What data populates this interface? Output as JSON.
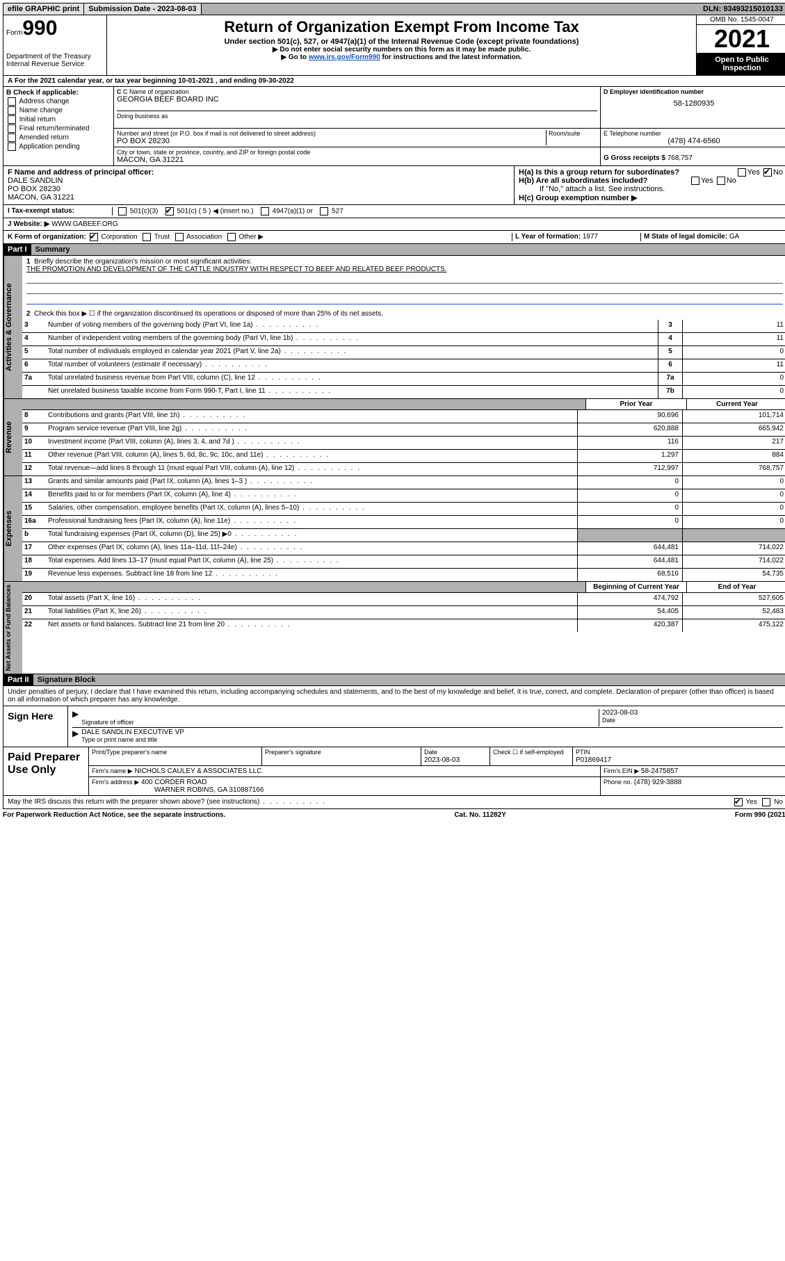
{
  "topbar": {
    "efile": "efile GRAPHIC print",
    "submission_label": "Submission Date - 2023-08-03",
    "dln": "DLN: 93493215010133"
  },
  "header": {
    "form_word": "Form",
    "form_no": "990",
    "title": "Return of Organization Exempt From Income Tax",
    "subtitle": "Under section 501(c), 527, or 4947(a)(1) of the Internal Revenue Code (except private foundations)",
    "instr1": "▶ Do not enter social security numbers on this form as it may be made public.",
    "instr2_pre": "▶ Go to ",
    "instr2_link": "www.irs.gov/Form990",
    "instr2_post": " for instructions and the latest information.",
    "omb": "OMB No. 1545-0047",
    "year": "2021",
    "open_public": "Open to Public Inspection",
    "dept": "Department of the Treasury Internal Revenue Service"
  },
  "section_a": {
    "tax_year": "For the 2021 calendar year, or tax year beginning 10-01-2021   , and ending 09-30-2022",
    "b_label": "B Check if applicable:",
    "b_opts": [
      "Address change",
      "Name change",
      "Initial return",
      "Final return/terminated",
      "Amended return",
      "Application pending"
    ],
    "c_label": "C Name of organization",
    "c_name": "GEORGIA BEEF BOARD INC",
    "dba_label": "Doing business as",
    "addr_label": "Number and street (or P.O. box if mail is not delivered to street address)",
    "room_label": "Room/suite",
    "addr": "PO BOX 28230",
    "city_label": "City or town, state or province, country, and ZIP or foreign postal code",
    "city": "MACON, GA  31221",
    "d_label": "D Employer identification number",
    "d_val": "58-1280935",
    "e_label": "E Telephone number",
    "e_val": "(478) 474-6560",
    "g_label": "G Gross receipts $",
    "g_val": "768,757"
  },
  "section_f": {
    "f_label": "F  Name and address of principal officer:",
    "f_name": "DALE SANDLIN",
    "f_addr1": "PO BOX 28230",
    "f_addr2": "MACON, GA  31221",
    "ha_label": "H(a)  Is this a group return for subordinates?",
    "hb_label": "H(b)  Are all subordinates included?",
    "hb_note": "If \"No,\" attach a list. See instructions.",
    "hc_label": "H(c)  Group exemption number ▶",
    "yes": "Yes",
    "no": "No"
  },
  "tax_status": {
    "i_label": "I    Tax-exempt status:",
    "opt1": "501(c)(3)",
    "opt2": "501(c) ( 5 ) ◀ (insert no.)",
    "opt3": "4947(a)(1) or",
    "opt4": "527"
  },
  "website": {
    "j_label": "J    Website: ▶",
    "j_val": "WWW.GABEEF.ORG"
  },
  "k_org": {
    "k_label": "K Form of organization:",
    "opts": [
      "Corporation",
      "Trust",
      "Association",
      "Other ▶"
    ],
    "l_label": "L Year of formation:",
    "l_val": "1977",
    "m_label": "M State of legal domicile:",
    "m_val": "GA"
  },
  "part1": {
    "hdr": "Part I",
    "title": "Summary",
    "q1": "Briefly describe the organization's mission or most significant activities:",
    "mission": "THE PROMOTION AND DEVELOPMENT OF THE CATTLE INDUSTRY WITH RESPECT TO BEEF AND RELATED BEEF PRODUCTS.",
    "q2": "Check this box ▶ ☐  if the organization discontinued its operations or disposed of more than 25% of its net assets.",
    "gov_lines": [
      {
        "n": "3",
        "d": "Number of voting members of the governing body (Part VI, line 1a)",
        "box": "3",
        "v": "11"
      },
      {
        "n": "4",
        "d": "Number of independent voting members of the governing body (Part VI, line 1b)",
        "box": "4",
        "v": "11"
      },
      {
        "n": "5",
        "d": "Total number of individuals employed in calendar year 2021 (Part V, line 2a)",
        "box": "5",
        "v": "0"
      },
      {
        "n": "6",
        "d": "Total number of volunteers (estimate if necessary)",
        "box": "6",
        "v": "11"
      },
      {
        "n": "7a",
        "d": "Total unrelated business revenue from Part VIII, column (C), line 12",
        "box": "7a",
        "v": "0"
      },
      {
        "n": "",
        "d": "Net unrelated business taxable income from Form 990-T, Part I, line 11",
        "box": "7b",
        "v": "0"
      }
    ],
    "col_prior": "Prior Year",
    "col_current": "Current Year",
    "rev_lines": [
      {
        "n": "8",
        "d": "Contributions and grants (Part VIII, line 1h)",
        "p": "90,696",
        "c": "101,714"
      },
      {
        "n": "9",
        "d": "Program service revenue (Part VIII, line 2g)",
        "p": "620,888",
        "c": "665,942"
      },
      {
        "n": "10",
        "d": "Investment income (Part VIII, column (A), lines 3, 4, and 7d )",
        "p": "116",
        "c": "217"
      },
      {
        "n": "11",
        "d": "Other revenue (Part VIII, column (A), lines 5, 6d, 8c, 9c, 10c, and 11e)",
        "p": "1,297",
        "c": "884"
      },
      {
        "n": "12",
        "d": "Total revenue—add lines 8 through 11 (must equal Part VIII, column (A), line 12)",
        "p": "712,997",
        "c": "768,757"
      }
    ],
    "exp_lines": [
      {
        "n": "13",
        "d": "Grants and similar amounts paid (Part IX, column (A), lines 1–3 )",
        "p": "0",
        "c": "0"
      },
      {
        "n": "14",
        "d": "Benefits paid to or for members (Part IX, column (A), line 4)",
        "p": "0",
        "c": "0"
      },
      {
        "n": "15",
        "d": "Salaries, other compensation, employee benefits (Part IX, column (A), lines 5–10)",
        "p": "0",
        "c": "0"
      },
      {
        "n": "16a",
        "d": "Professional fundraising fees (Part IX, column (A), line 11e)",
        "p": "0",
        "c": "0"
      },
      {
        "n": "b",
        "d": "Total fundraising expenses (Part IX, column (D), line 25) ▶0",
        "p": "",
        "c": "",
        "shade": true
      },
      {
        "n": "17",
        "d": "Other expenses (Part IX, column (A), lines 11a–11d, 11f–24e)",
        "p": "644,481",
        "c": "714,022"
      },
      {
        "n": "18",
        "d": "Total expenses. Add lines 13–17 (must equal Part IX, column (A), line 25)",
        "p": "644,481",
        "c": "714,022"
      },
      {
        "n": "19",
        "d": "Revenue less expenses. Subtract line 18 from line 12",
        "p": "68,516",
        "c": "54,735"
      }
    ],
    "col_begin": "Beginning of Current Year",
    "col_end": "End of Year",
    "net_lines": [
      {
        "n": "20",
        "d": "Total assets (Part X, line 16)",
        "p": "474,792",
        "c": "527,605"
      },
      {
        "n": "21",
        "d": "Total liabilities (Part X, line 26)",
        "p": "54,405",
        "c": "52,483"
      },
      {
        "n": "22",
        "d": "Net assets or fund balances. Subtract line 21 from line 20",
        "p": "420,387",
        "c": "475,122"
      }
    ],
    "vtab_gov": "Activities & Governance",
    "vtab_rev": "Revenue",
    "vtab_exp": "Expenses",
    "vtab_net": "Net Assets or Fund Balances"
  },
  "part2": {
    "hdr": "Part II",
    "title": "Signature Block",
    "penalty": "Under penalties of perjury, I declare that I have examined this return, including accompanying schedules and statements, and to the best of my knowledge and belief, it is true, correct, and complete. Declaration of preparer (other than officer) is based on all information of which preparer has any knowledge.",
    "sign_here": "Sign Here",
    "sig_officer": "Signature of officer",
    "sig_date": "Date",
    "sig_date_val": "2023-08-03",
    "sig_name": "DALE SANDLIN  EXECUTIVE VP",
    "sig_type": "Type or print name and title",
    "paid": "Paid Preparer Use Only",
    "prep_name_label": "Print/Type preparer's name",
    "prep_sig_label": "Preparer's signature",
    "prep_date_label": "Date",
    "prep_date": "2023-08-03",
    "prep_check": "Check ☐ if self-employed",
    "ptin_label": "PTIN",
    "ptin": "P01869417",
    "firm_name_label": "Firm's name    ▶",
    "firm_name": "NICHOLS CAULEY & ASSOCIATES LLC",
    "firm_ein_label": "Firm's EIN ▶",
    "firm_ein": "58-2475857",
    "firm_addr_label": "Firm's address ▶",
    "firm_addr1": "400 CORDER ROAD",
    "firm_addr2": "WARNER ROBINS, GA  310887166",
    "phone_label": "Phone no.",
    "phone": "(478) 929-3888",
    "may_irs": "May the IRS discuss this return with the preparer shown above? (see instructions)"
  },
  "footer": {
    "paperwork": "For Paperwork Reduction Act Notice, see the separate instructions.",
    "cat": "Cat. No. 11282Y",
    "form": "Form 990 (2021)"
  }
}
